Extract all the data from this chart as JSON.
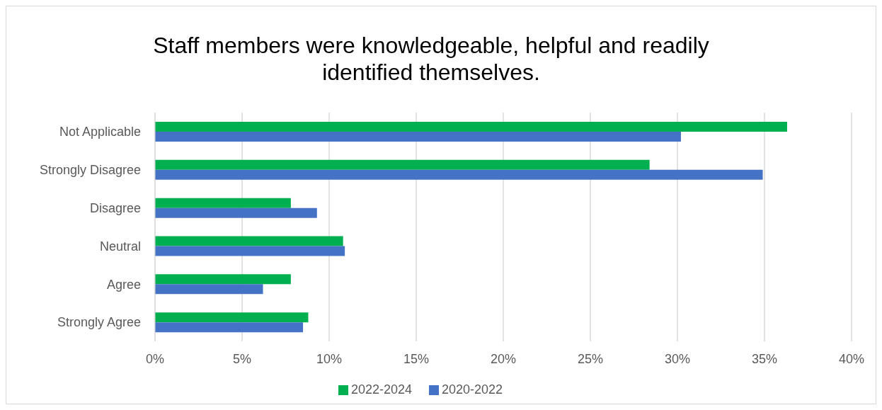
{
  "chart_data": {
    "type": "bar",
    "orientation": "horizontal",
    "title": "Staff members were knowledgeable, helpful and readily identified themselves.",
    "categories": [
      "Not Applicable",
      "Strongly Disagree",
      "Disagree",
      "Neutral",
      "Agree",
      "Strongly Agree"
    ],
    "series": [
      {
        "name": "2022-2024",
        "color": "#00b050",
        "values": [
          36.3,
          28.4,
          7.8,
          10.8,
          7.8,
          8.8
        ]
      },
      {
        "name": "2020-2022",
        "color": "#4472c4",
        "values": [
          30.2,
          34.9,
          9.3,
          10.9,
          6.2,
          8.5
        ]
      }
    ],
    "xlim": [
      0,
      40
    ],
    "xticks": [
      {
        "value": 0,
        "label": "0%"
      },
      {
        "value": 5,
        "label": "5%"
      },
      {
        "value": 10,
        "label": "10%"
      },
      {
        "value": 15,
        "label": "15%"
      },
      {
        "value": 20,
        "label": "20%"
      },
      {
        "value": 25,
        "label": "25%"
      },
      {
        "value": 30,
        "label": "30%"
      },
      {
        "value": 35,
        "label": "35%"
      },
      {
        "value": 40,
        "label": "40%"
      }
    ],
    "grid": "x",
    "legend": "bottom"
  }
}
